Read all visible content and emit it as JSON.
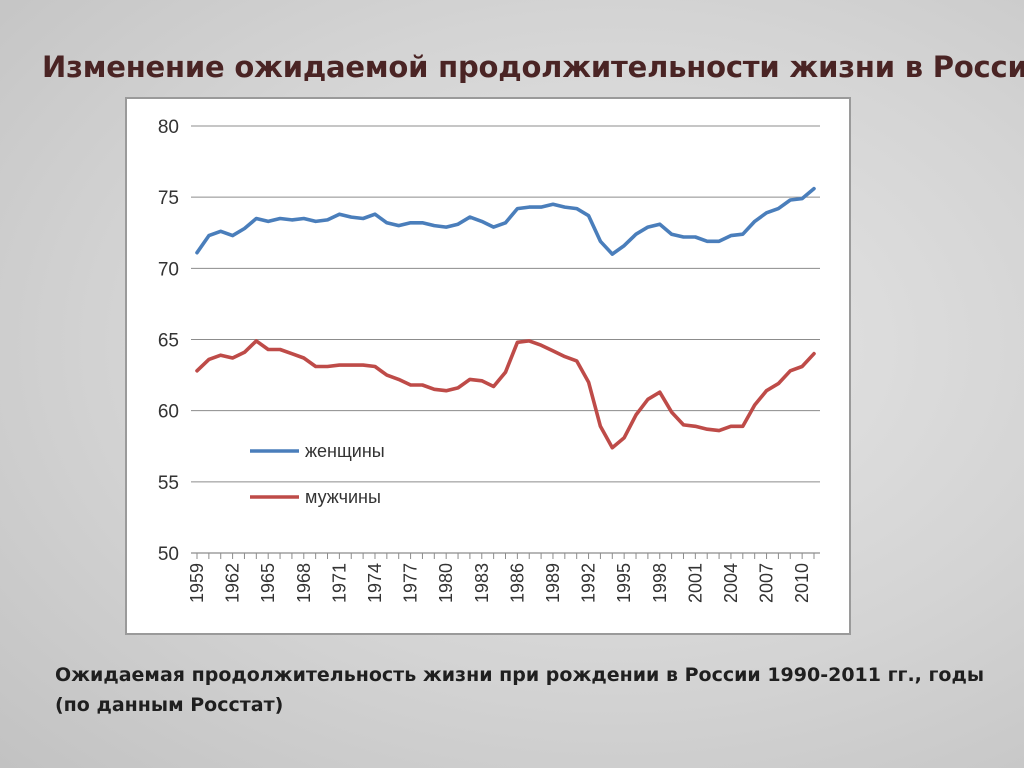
{
  "slide": {
    "title": "Изменение ожидаемой продолжительности жизни в России",
    "caption_line1": "Ожидаемая продолжительность жизни при рождении в России 1990-2011 гг., годы",
    "caption_line2": "(по данным Росстат)"
  },
  "chart_data": {
    "type": "line",
    "title": "",
    "xlabel": "",
    "ylabel": "",
    "ylim": [
      50,
      80
    ],
    "yticks": [
      "50",
      "55",
      "60",
      "65",
      "70",
      "75",
      "80"
    ],
    "x": [
      1959,
      1960,
      1961,
      1962,
      1963,
      1964,
      1965,
      1966,
      1967,
      1968,
      1969,
      1970,
      1971,
      1972,
      1973,
      1974,
      1975,
      1976,
      1977,
      1978,
      1979,
      1980,
      1981,
      1982,
      1983,
      1984,
      1985,
      1986,
      1987,
      1988,
      1989,
      1990,
      1991,
      1992,
      1993,
      1994,
      1995,
      1996,
      1997,
      1998,
      1999,
      2000,
      2001,
      2002,
      2003,
      2004,
      2005,
      2006,
      2007,
      2008,
      2009,
      2010,
      2011
    ],
    "xticks": [
      "1959",
      "1962",
      "1965",
      "1968",
      "1971",
      "1974",
      "1977",
      "1980",
      "1983",
      "1986",
      "1989",
      "1992",
      "1995",
      "1998",
      "2001",
      "2004",
      "2007",
      "2010"
    ],
    "grid": true,
    "legend_position": "inside-lower-left",
    "series": [
      {
        "name": "женщины",
        "color": "#4a7ebb",
        "values": [
          71.1,
          72.3,
          72.6,
          72.3,
          72.8,
          73.5,
          73.3,
          73.5,
          73.4,
          73.5,
          73.3,
          73.4,
          73.8,
          73.6,
          73.5,
          73.8,
          73.2,
          73.0,
          73.2,
          73.2,
          73.0,
          72.9,
          73.1,
          73.6,
          73.3,
          72.9,
          73.2,
          74.2,
          74.3,
          74.3,
          74.5,
          74.3,
          74.2,
          73.7,
          71.9,
          71.0,
          71.6,
          72.4,
          72.9,
          73.1,
          72.4,
          72.2,
          72.2,
          71.9,
          71.9,
          72.3,
          72.4,
          73.3,
          73.9,
          74.2,
          74.8,
          74.9,
          75.6
        ]
      },
      {
        "name": "мужчины",
        "color": "#be4b48",
        "values": [
          62.8,
          63.6,
          63.9,
          63.7,
          64.1,
          64.9,
          64.3,
          64.3,
          64.0,
          63.7,
          63.1,
          63.1,
          63.2,
          63.2,
          63.2,
          63.1,
          62.5,
          62.2,
          61.8,
          61.8,
          61.5,
          61.4,
          61.6,
          62.2,
          62.1,
          61.7,
          62.7,
          64.8,
          64.9,
          64.6,
          64.2,
          63.8,
          63.5,
          62.0,
          58.9,
          57.4,
          58.1,
          59.7,
          60.8,
          61.3,
          59.9,
          59.0,
          58.9,
          58.7,
          58.6,
          58.9,
          58.9,
          60.4,
          61.4,
          61.9,
          62.8,
          63.1,
          64.0
        ]
      }
    ]
  }
}
